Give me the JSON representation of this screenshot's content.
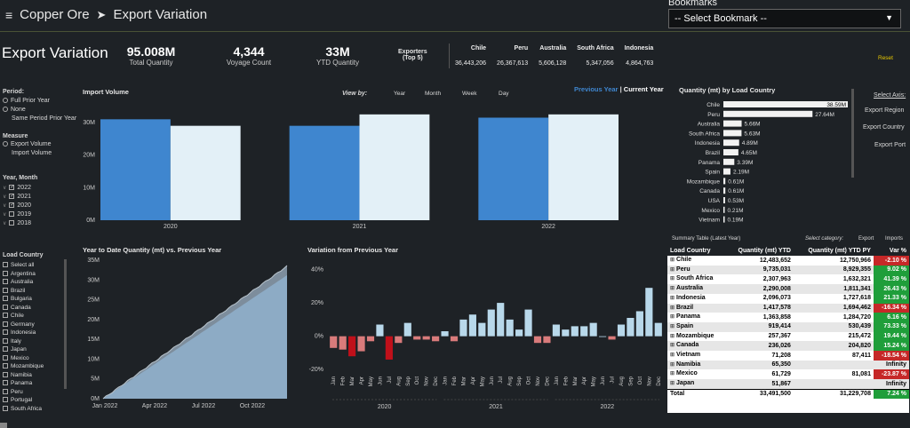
{
  "header": {
    "menu_icon": "hamburger-icon",
    "crumb1": "Copper Ore",
    "crumb_sep": "➤",
    "crumb2": "Export Variation",
    "bookmarks_label": "Bookmarks",
    "bookmark_placeholder": "-- Select Bookmark --"
  },
  "page_title": "Export Variation",
  "kpis": [
    {
      "value": "95.008M",
      "label": "Total Quantity"
    },
    {
      "value": "4,344",
      "label": "Voyage Count"
    },
    {
      "value": "33M",
      "label": "YTD Quantity"
    }
  ],
  "exporters": {
    "title1": "Exporters",
    "title2": "(Top 5)",
    "names": [
      "Chile",
      "Peru",
      "Australia",
      "South Africa",
      "Indonesia"
    ],
    "values": [
      "36,443,206",
      "26,367,613",
      "5,606,128",
      "5,347,056",
      "4,864,763"
    ]
  },
  "reset_label": "Reset",
  "filters": {
    "period_title": "Period:",
    "period_options": [
      "Full Prior Year",
      "None",
      "Same Period Prior Year"
    ],
    "measure_title": "Measure",
    "measure_options": [
      "Export Volume",
      "Import Volume"
    ],
    "year_title": "Year, Month",
    "years": [
      "2022",
      "2021",
      "2020",
      "2019",
      "2018"
    ],
    "years_checked": [
      true,
      true,
      true,
      false,
      false
    ],
    "lc_title": "Load Country",
    "countries": [
      "Select all",
      "Argentina",
      "Australia",
      "Brazil",
      "Bulgaria",
      "Canada",
      "Chile",
      "Germany",
      "Indonesia",
      "Italy",
      "Japan",
      "Mexico",
      "Mozambique",
      "Namibia",
      "Panama",
      "Peru",
      "Portugal",
      "South Africa"
    ]
  },
  "import_chart": {
    "title": "Import Volume",
    "viewby_label": "View by:",
    "viewby_options": [
      "Year",
      "Month",
      "Week",
      "Day"
    ],
    "legend_prev": "Previous Year",
    "legend_sep": "|",
    "legend_curr": "Current Year",
    "colors": {
      "prev": "#3f86cf",
      "curr": "#e3f0f7"
    }
  },
  "country_bars": {
    "title": "Quantity (mt) by Load Country",
    "select_axis": "Select Axis:",
    "axis_options": [
      "Export Region",
      "Export Country",
      "Export Port"
    ]
  },
  "ytd_chart": {
    "title": "Year to Date Quantity (mt) vs. Previous Year"
  },
  "var_chart": {
    "title": "Variation from Previous Year",
    "colors": {
      "pos": "#b8d8ea",
      "neg": "#d97b7b",
      "neg_strong": "#c0101a"
    }
  },
  "summary": {
    "title": "Summary Table (Latest Year)",
    "select_category": "Select category:",
    "export_btn": "Export",
    "imports_btn": "Imports",
    "columns": [
      "Load Country",
      "Quantity (mt) YTD",
      "Quantity (mt) YTD PY",
      "Var %"
    ],
    "rows": [
      {
        "c": "Chile",
        "ytd": "12,483,652",
        "py": "12,750,966",
        "var": "-2.10 %",
        "s": "neg"
      },
      {
        "c": "Peru",
        "ytd": "9,735,031",
        "py": "8,929,355",
        "var": "9.02 %",
        "s": "pos"
      },
      {
        "c": "South Africa",
        "ytd": "2,307,963",
        "py": "1,632,321",
        "var": "41.39 %",
        "s": "pos"
      },
      {
        "c": "Australia",
        "ytd": "2,290,008",
        "py": "1,811,341",
        "var": "26.43 %",
        "s": "pos"
      },
      {
        "c": "Indonesia",
        "ytd": "2,096,073",
        "py": "1,727,618",
        "var": "21.33 %",
        "s": "pos"
      },
      {
        "c": "Brazil",
        "ytd": "1,417,578",
        "py": "1,694,462",
        "var": "-16.34 %",
        "s": "neg"
      },
      {
        "c": "Panama",
        "ytd": "1,363,858",
        "py": "1,284,720",
        "var": "6.16 %",
        "s": "pos"
      },
      {
        "c": "Spain",
        "ytd": "919,414",
        "py": "530,439",
        "var": "73.33 %",
        "s": "pos"
      },
      {
        "c": "Mozambique",
        "ytd": "257,367",
        "py": "215,472",
        "var": "19.44 %",
        "s": "pos"
      },
      {
        "c": "Canada",
        "ytd": "236,026",
        "py": "204,820",
        "var": "15.24 %",
        "s": "pos"
      },
      {
        "c": "Vietnam",
        "ytd": "71,208",
        "py": "87,411",
        "var": "-18.54 %",
        "s": "neg"
      },
      {
        "c": "Namibia",
        "ytd": "65,350",
        "py": "",
        "var": "Infinity",
        "s": ""
      },
      {
        "c": "Mexico",
        "ytd": "61,729",
        "py": "81,081",
        "var": "-23.87 %",
        "s": "neg"
      },
      {
        "c": "Japan",
        "ytd": "51,867",
        "py": "",
        "var": "Infinity",
        "s": ""
      }
    ],
    "total": {
      "c": "Total",
      "ytd": "33,491,500",
      "py": "31,229,708",
      "var": "7.24 %"
    }
  },
  "chart_data": [
    {
      "type": "bar",
      "title": "Import Volume",
      "categories": [
        "2020",
        "2021",
        "2022"
      ],
      "series": [
        {
          "name": "Previous Year",
          "values": [
            31,
            29,
            31.5
          ]
        },
        {
          "name": "Current Year",
          "values": [
            29,
            32.5,
            32.5
          ]
        }
      ],
      "yticks": [
        "0M",
        "10M",
        "20M",
        "30M"
      ],
      "ylim": [
        0,
        36
      ]
    },
    {
      "type": "bar",
      "title": "Quantity (mt) by Load Country",
      "categories": [
        "Chile",
        "Peru",
        "Australia",
        "South Africa",
        "Indonesia",
        "Brazil",
        "Panama",
        "Spain",
        "Mozambique",
        "Canada",
        "USA",
        "Mexico",
        "Vietnam"
      ],
      "values": [
        38.59,
        27.64,
        5.66,
        5.63,
        4.89,
        4.65,
        3.39,
        2.19,
        0.61,
        0.61,
        0.53,
        0.21,
        0.19
      ],
      "labels": [
        "38.59M",
        "27.64M",
        "5.66M",
        "5.63M",
        "4.89M",
        "4.65M",
        "3.39M",
        "2.19M",
        "0.61M",
        "0.61M",
        "0.53M",
        "0.21M",
        "0.19M"
      ]
    },
    {
      "type": "area",
      "title": "Year to Date Quantity (mt) vs. Previous Year",
      "x": [
        "Jan 2022",
        "Apr 2022",
        "Jul 2022",
        "Oct 2022"
      ],
      "yticks": [
        "0M",
        "5M",
        "10M",
        "15M",
        "20M",
        "25M",
        "30M",
        "35M"
      ],
      "ylim": [
        0,
        35
      ],
      "current_end": 33.5,
      "previous_end": 31.2
    },
    {
      "type": "bar",
      "title": "Variation from Previous Year",
      "months": [
        "Jan",
        "Feb",
        "Mar",
        "Apr",
        "May",
        "Jun",
        "Jul",
        "Aug",
        "Sep",
        "Oct",
        "Nov",
        "Dec",
        "Jan",
        "Feb",
        "Mar",
        "Apr",
        "May",
        "Jun",
        "Jul",
        "Aug",
        "Sep",
        "Oct",
        "Nov",
        "Dec",
        "Jan",
        "Feb",
        "Mar",
        "Apr",
        "May",
        "Jun",
        "Jul",
        "Aug",
        "Sep",
        "Oct",
        "Nov",
        "Dec"
      ],
      "years": [
        "2020",
        "2021",
        "2022"
      ],
      "values": [
        -7,
        -8,
        -12,
        -9,
        -3,
        7,
        -14,
        -4,
        8,
        -2,
        -2,
        -3,
        3,
        -3,
        10,
        13,
        8,
        16,
        20,
        10,
        4,
        16,
        -4,
        -4,
        7,
        4,
        6,
        6,
        8,
        0,
        -2,
        7,
        11,
        15,
        29,
        8
      ],
      "yticks": [
        "-20%",
        "0%",
        "20%",
        "40%"
      ],
      "ylim": [
        -22,
        44
      ]
    }
  ]
}
